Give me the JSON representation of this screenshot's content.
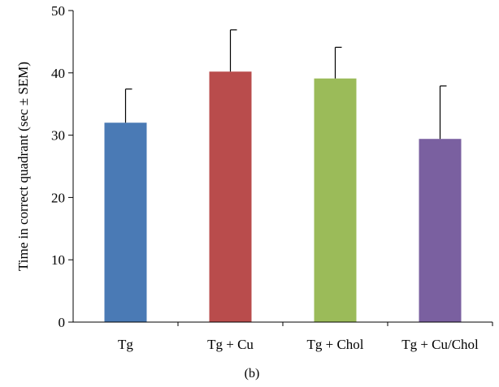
{
  "chart_data": {
    "type": "bar",
    "categories": [
      "Tg",
      "Tg + Cu",
      "Tg + Chol",
      "Tg + Cu/Chol"
    ],
    "values": [
      32.0,
      40.2,
      39.1,
      29.4
    ],
    "errors": [
      5.4,
      6.7,
      5.0,
      8.5
    ],
    "colors": [
      "#4a7ab5",
      "#b94c4c",
      "#9bbb59",
      "#7a60a0"
    ],
    "title": "",
    "xlabel": "",
    "ylabel": "Time in correct quadrant (sec ± SEM)",
    "ylim": [
      0,
      50
    ],
    "yticks": [
      0,
      10,
      20,
      30,
      40,
      50
    ],
    "grid": false,
    "legend": "none",
    "panel_label": "(b)"
  }
}
